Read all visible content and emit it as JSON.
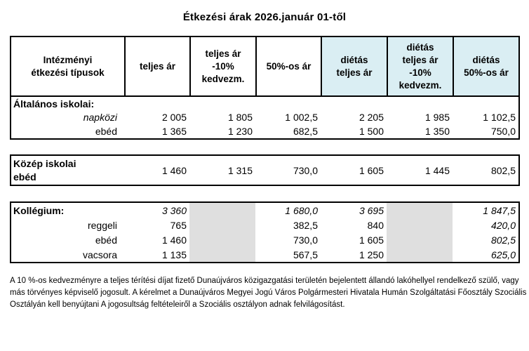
{
  "title": "Étkezési árak 2026.január 01-től",
  "colors": {
    "dietas_header_bg": "#daeef3",
    "empty_cell_bg": "#dfdfdf",
    "border": "#000000"
  },
  "header": {
    "columns": [
      {
        "label": "Intézményi\nétkezési típusok",
        "highlight": false
      },
      {
        "label": "teljes ár",
        "highlight": false
      },
      {
        "label": "teljes ár\n-10%\nkedvezm.",
        "highlight": false
      },
      {
        "label": "50%-os  ár",
        "highlight": false
      },
      {
        "label": "diétás\nteljes ár",
        "highlight": true
      },
      {
        "label": "diétás\nteljes ár\n-10%\nkedvezm.",
        "highlight": true
      },
      {
        "label": "diétás\n50%-os ár",
        "highlight": true
      }
    ]
  },
  "sections": {
    "altalanos": {
      "group_label": "Általános iskolai:",
      "rows": [
        {
          "label": "napközi",
          "values": [
            "2 005",
            "1 805",
            "1 002,5",
            "2 205",
            "1 985",
            "1 102,5"
          ]
        },
        {
          "label": "ebéd",
          "values": [
            "1 365",
            "1 230",
            "682,5",
            "1 500",
            "1 350",
            "750,0"
          ]
        }
      ]
    },
    "kozep": {
      "label": "Közép iskolai\nebéd",
      "values": [
        "1 460",
        "1 315",
        "730,0",
        "1 605",
        "1 445",
        "802,5"
      ]
    },
    "kollegium": {
      "rows": [
        {
          "label": "Kollégium:",
          "values": [
            "3 360",
            "",
            "1 680,0",
            "3 695",
            "",
            "1 847,5"
          ]
        },
        {
          "label": "reggeli",
          "values": [
            "765",
            "",
            "382,5",
            "840",
            "",
            "420,0"
          ]
        },
        {
          "label": "ebéd",
          "values": [
            "1 460",
            "",
            "730,0",
            "1 605",
            "",
            "802,5"
          ]
        },
        {
          "label": "vacsora",
          "values": [
            "1 135",
            "",
            "567,5",
            "1 250",
            "",
            "625,0"
          ]
        }
      ]
    }
  },
  "footer": "A 10 %-os kedvezményre a teljes térítési díjat fizető Dunaújváros közigazgatási területén bejelentett állandó lakóhellyel rendelkező szülő, vagy más törvényes képviselő jogosult. A kérelmet a Dunaújváros Megyei Jogú Város Polgármesteri Hivatala Humán Szolgáltatási Főosztály Szociális Osztályán kell benyújtani A jogosultság feltételeiről a Szociális osztályon adnak felvilágosítást."
}
